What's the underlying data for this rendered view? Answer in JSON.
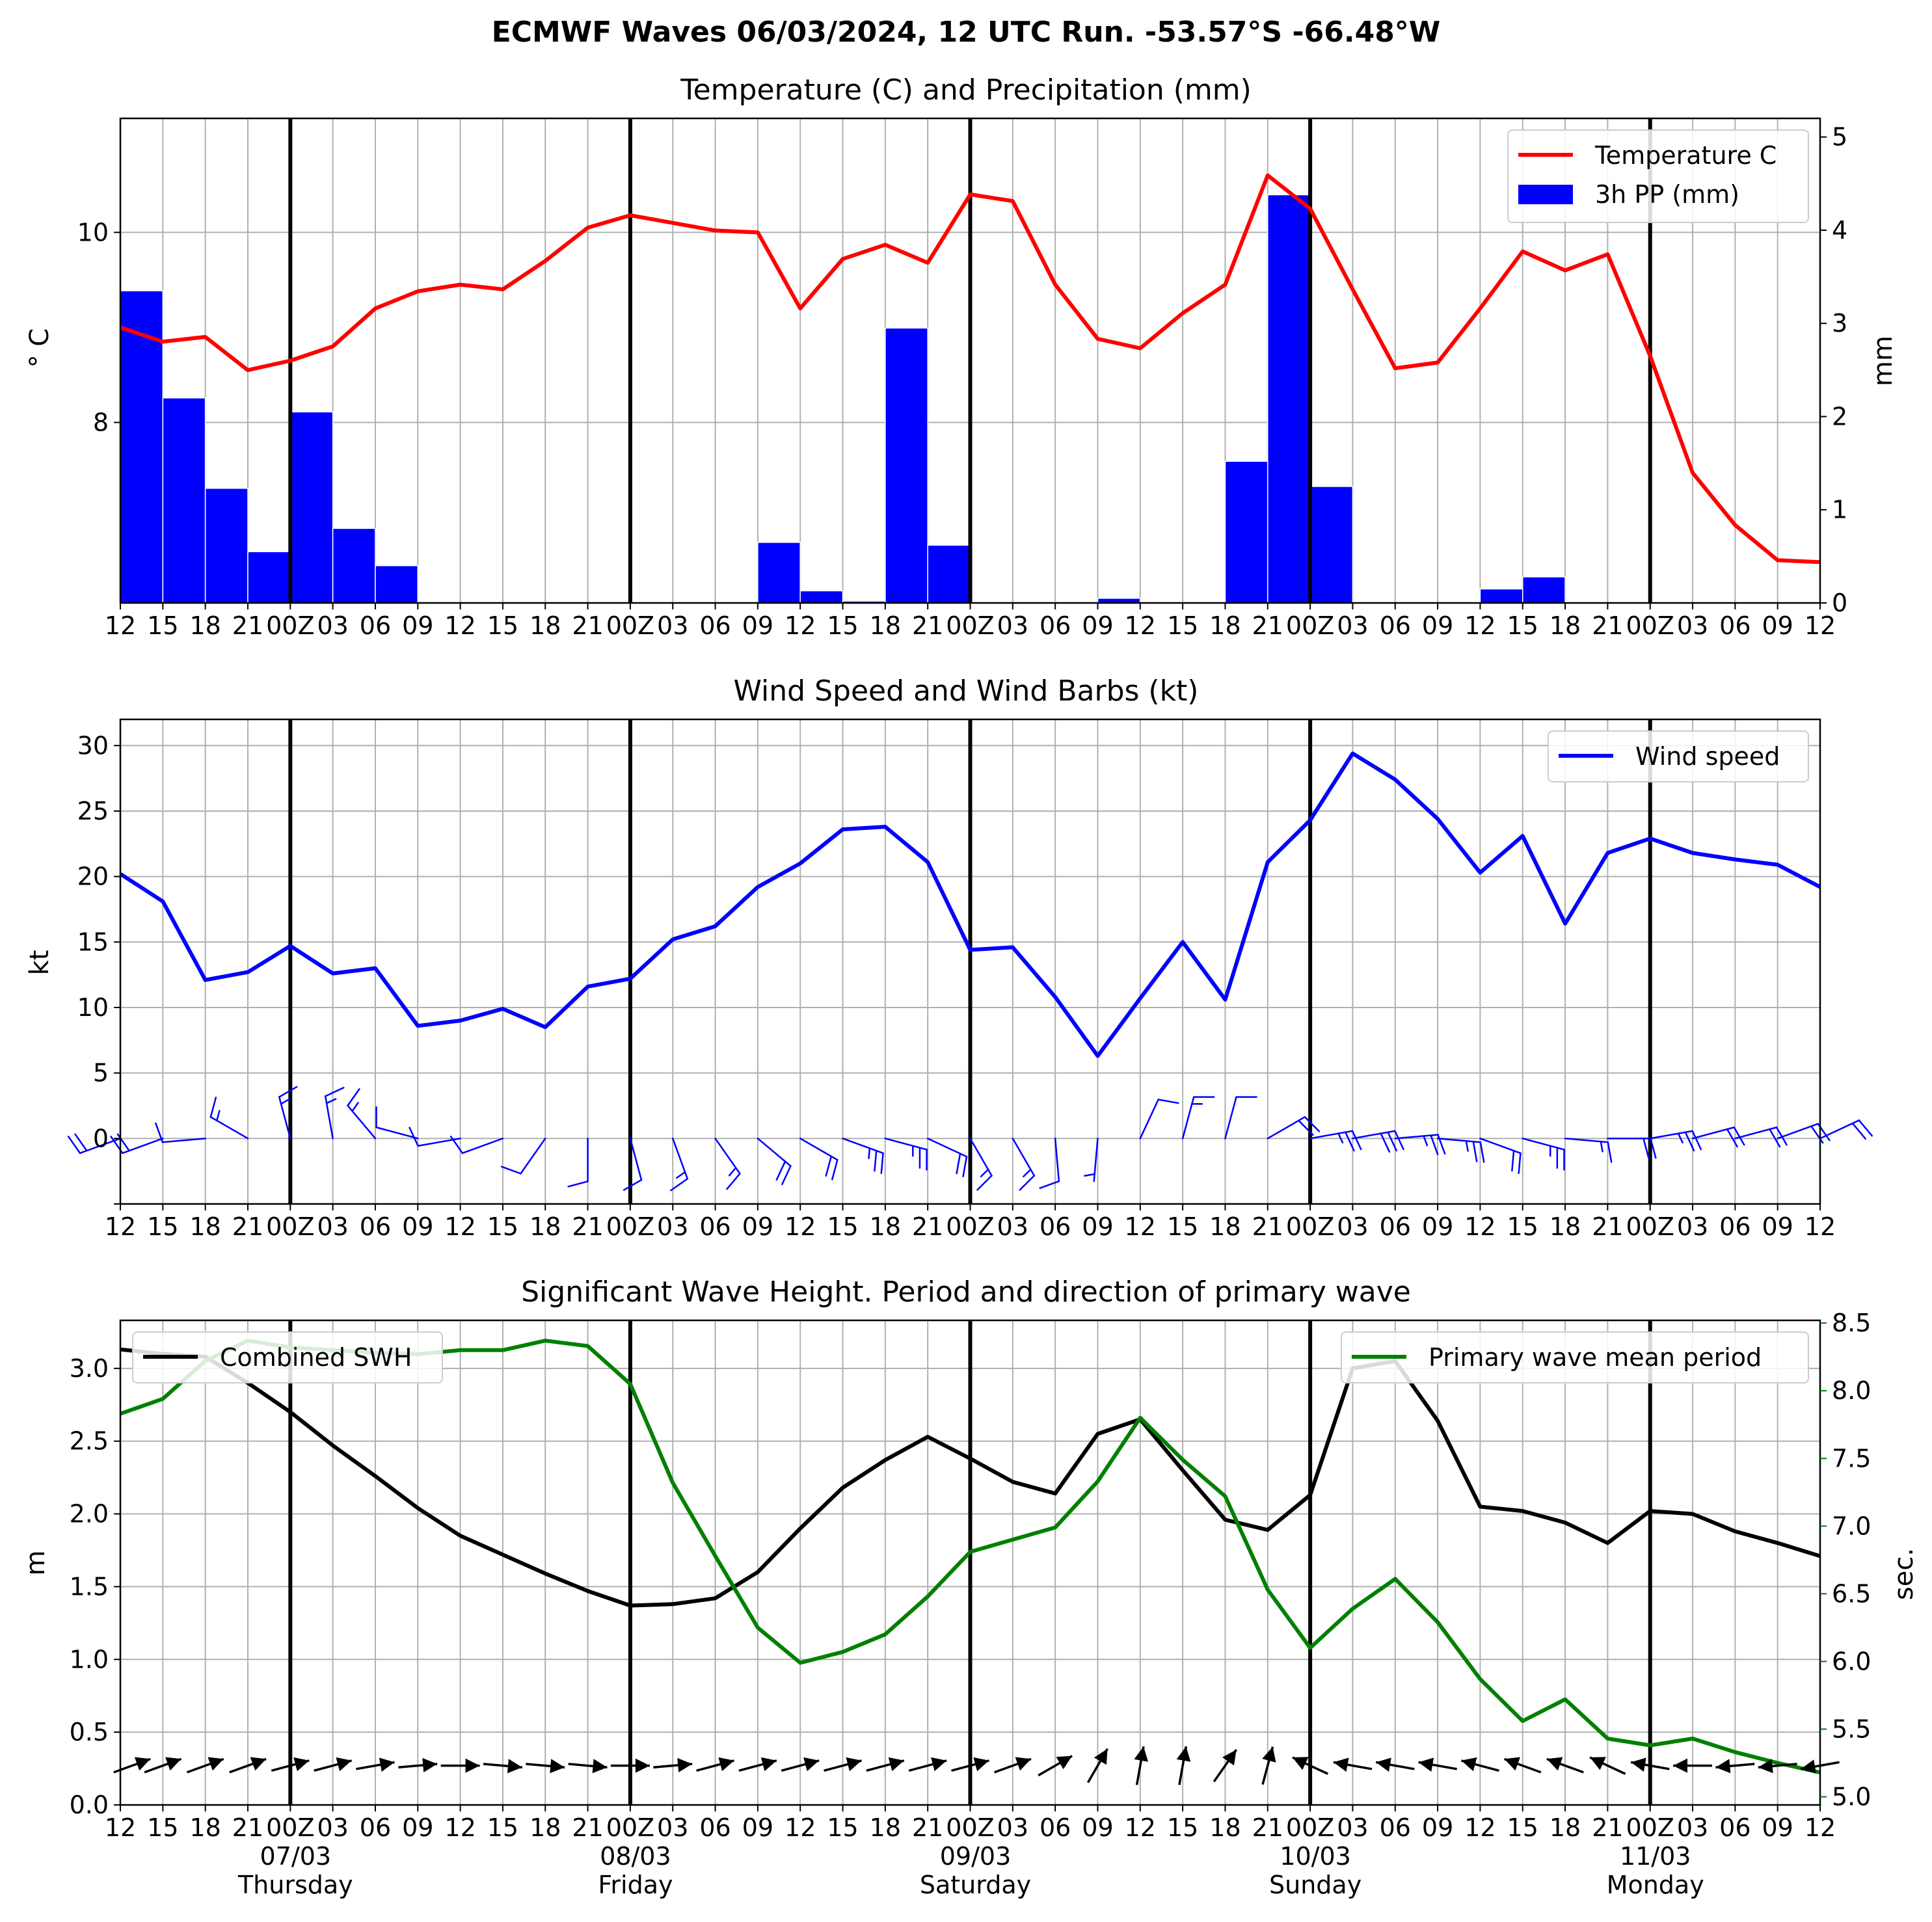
{
  "suptitle": "ECMWF Waves 06/03/2024, 12 UTC Run. -53.57°S -66.48°W",
  "time_axis": {
    "hour_labels": [
      "12",
      "15",
      "18",
      "21",
      "00Z",
      "03",
      "06",
      "09",
      "12",
      "15",
      "18",
      "21",
      "00Z",
      "03",
      "06",
      "09",
      "12",
      "15",
      "18",
      "21",
      "00Z",
      "03",
      "06",
      "09",
      "12",
      "15",
      "18",
      "21",
      "00Z",
      "03",
      "06",
      "09",
      "12",
      "15",
      "18",
      "21",
      "00Z",
      "03",
      "06",
      "09",
      "12"
    ],
    "day_boundaries": [
      4,
      12,
      20,
      28,
      36
    ],
    "day_labels": [
      {
        "date": "07/03",
        "weekday": "Thursday"
      },
      {
        "date": "08/03",
        "weekday": "Friday"
      },
      {
        "date": "09/03",
        "weekday": "Saturday"
      },
      {
        "date": "10/03",
        "weekday": "Sunday"
      },
      {
        "date": "11/03",
        "weekday": "Monday"
      }
    ]
  },
  "colors": {
    "temperature": "#ff0000",
    "precipitation": "#0000ff",
    "wind": "#0000ff",
    "swh": "#000000",
    "period": "#008000",
    "grid": "#b0b0b0"
  },
  "chart_data": [
    {
      "type": "line",
      "title": "Temperature (C) and Precipitation (mm)",
      "ylabel": "$^\\circ$C",
      "ylabel_display": "° C",
      "ylabel_right": "mm",
      "ylim": [
        6.1,
        11.2
      ],
      "yticks": [
        8,
        10
      ],
      "ylim_right": [
        0,
        5.2
      ],
      "yticks_right": [
        0,
        1,
        2,
        3,
        4,
        5
      ],
      "grid": true,
      "legend_position": "top-right",
      "series": [
        {
          "name": "Temperature C",
          "kind": "line",
          "axis": "left",
          "values": [
            9.0,
            8.85,
            8.9,
            8.55,
            8.65,
            8.8,
            9.2,
            9.38,
            9.45,
            9.4,
            9.7,
            10.05,
            10.18,
            10.1,
            10.02,
            10.0,
            9.2,
            9.72,
            9.87,
            9.68,
            10.4,
            10.33,
            9.45,
            8.88,
            8.78,
            9.15,
            9.45,
            10.6,
            10.25,
            9.4,
            8.57,
            8.63,
            9.2,
            9.8,
            9.6,
            9.77,
            8.7,
            7.47,
            6.92,
            6.55,
            6.53
          ]
        },
        {
          "name": "3h PP (mm)",
          "kind": "bar",
          "axis": "right",
          "values": [
            3.35,
            2.2,
            1.23,
            0.55,
            2.05,
            0.8,
            0.4,
            0,
            0,
            0,
            0,
            0,
            0,
            0,
            0,
            0.65,
            0.13,
            0.02,
            2.95,
            0.62,
            0,
            0,
            0.01,
            0.05,
            0,
            0,
            1.52,
            4.38,
            1.25,
            0,
            0,
            0,
            0.15,
            0.28,
            0,
            0,
            0,
            0,
            0,
            0
          ]
        }
      ]
    },
    {
      "type": "line",
      "title": "Wind Speed and Wind Barbs (kt)",
      "ylabel": "kt",
      "ylim": [
        -5,
        32
      ],
      "yticks": [
        0,
        5,
        10,
        15,
        20,
        25,
        30
      ],
      "grid": true,
      "legend_position": "top-right",
      "series": [
        {
          "name": "Wind speed",
          "kind": "line",
          "values": [
            20.2,
            18.1,
            12.1,
            12.7,
            14.7,
            12.6,
            13.0,
            8.6,
            9.0,
            9.9,
            8.5,
            11.6,
            12.2,
            15.2,
            16.2,
            19.2,
            21.0,
            23.6,
            23.8,
            21.1,
            14.4,
            14.6,
            10.8,
            6.3,
            10.7,
            15.0,
            10.6,
            21.1,
            24.3,
            29.4,
            27.4,
            24.4,
            20.3,
            23.1,
            16.4,
            21.8,
            22.9,
            21.8,
            21.3,
            20.9,
            19.2
          ]
        }
      ],
      "wind_barb_directions_deg": [
        250,
        250,
        265,
        300,
        345,
        350,
        320,
        285,
        260,
        250,
        215,
        180,
        165,
        160,
        145,
        130,
        120,
        110,
        105,
        115,
        150,
        150,
        175,
        185,
        25,
        15,
        15,
        60,
        80,
        80,
        85,
        95,
        110,
        105,
        95,
        90,
        80,
        75,
        75,
        70,
        65
      ]
    },
    {
      "type": "line",
      "title": "Significant Wave Height. Period and direction of primary wave",
      "ylabel": "m",
      "ylabel_right": "sec.",
      "ylim": [
        0.0,
        3.33
      ],
      "yticks": [
        0.0,
        0.5,
        1.0,
        1.5,
        2.0,
        2.5,
        3.0
      ],
      "ylim_right": [
        4.94,
        8.52
      ],
      "yticks_right": [
        5.0,
        5.5,
        6.0,
        6.5,
        7.0,
        7.5,
        8.0,
        8.5
      ],
      "grid": true,
      "series": [
        {
          "name": "Combined SWH",
          "kind": "line",
          "axis": "left",
          "legend_position": "top-left",
          "values": [
            3.13,
            3.1,
            3.08,
            2.9,
            2.7,
            2.47,
            2.26,
            2.04,
            1.85,
            1.72,
            1.59,
            1.47,
            1.37,
            1.38,
            1.42,
            1.6,
            1.9,
            2.18,
            2.37,
            2.53,
            2.38,
            2.22,
            2.14,
            2.55,
            2.65,
            2.3,
            1.96,
            1.89,
            2.13,
            3.0,
            3.05,
            2.64,
            2.05,
            2.02,
            1.94,
            1.8,
            2.02,
            2.0,
            1.88,
            1.8,
            1.71
          ]
        },
        {
          "name": "Primary wave mean period",
          "kind": "line",
          "axis": "right",
          "legend_position": "top-right",
          "values": [
            7.83,
            7.94,
            8.22,
            8.37,
            8.32,
            8.3,
            8.28,
            8.27,
            8.3,
            8.3,
            8.37,
            8.33,
            8.05,
            7.32,
            6.78,
            6.25,
            5.99,
            6.07,
            6.2,
            6.48,
            6.81,
            6.9,
            6.99,
            7.33,
            7.8,
            7.49,
            7.22,
            6.53,
            6.1,
            6.39,
            6.61,
            6.29,
            5.87,
            5.56,
            5.72,
            5.43,
            5.38,
            5.43,
            5.33,
            5.25,
            5.18
          ]
        }
      ],
      "primary_wave_directions_deg": [
        250,
        250,
        250,
        250,
        255,
        255,
        260,
        265,
        270,
        275,
        275,
        275,
        270,
        265,
        255,
        255,
        255,
        255,
        255,
        255,
        255,
        250,
        240,
        210,
        190,
        190,
        215,
        195,
        115,
        100,
        100,
        100,
        105,
        110,
        110,
        115,
        100,
        90,
        85,
        85,
        80
      ]
    }
  ]
}
